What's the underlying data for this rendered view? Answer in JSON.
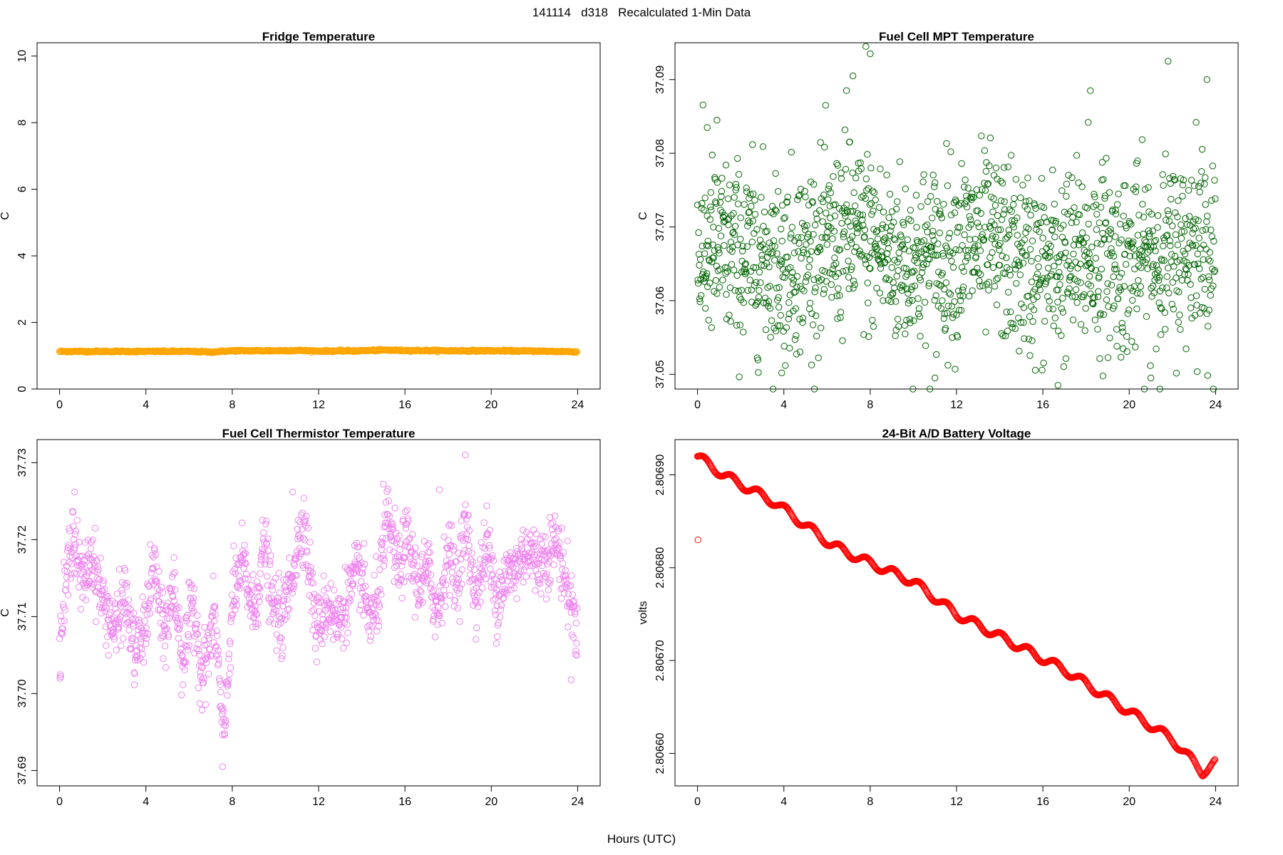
{
  "figure": {
    "title": "141114   d318   Recalculated 1-Min Data",
    "xlabel": "Hours (UTC)"
  },
  "chart_data": [
    {
      "type": "scatter",
      "title": "Fridge Temperature",
      "xlabel": "",
      "ylabel": "C",
      "color": "#FFA500",
      "xlim": [
        0,
        24
      ],
      "ylim": [
        0,
        10.4
      ],
      "x_ticks": [
        0,
        4,
        8,
        12,
        16,
        20,
        24
      ],
      "y_ticks": [
        0,
        2,
        4,
        6,
        8,
        10
      ],
      "y_tick_labels": [
        "0",
        "2",
        "4",
        "6",
        "8",
        "10"
      ],
      "points_per_hour": 60,
      "series": [
        {
          "x": [
            0,
            2,
            4,
            6,
            7,
            8,
            10,
            11,
            12,
            14,
            15,
            16,
            18,
            20,
            22,
            24
          ],
          "y": [
            1.13,
            1.13,
            1.13,
            1.13,
            1.11,
            1.15,
            1.15,
            1.16,
            1.14,
            1.15,
            1.17,
            1.16,
            1.15,
            1.15,
            1.14,
            1.12
          ]
        }
      ]
    },
    {
      "type": "scatter",
      "title": "Fuel Cell MPT Temperature",
      "xlabel": "",
      "ylabel": "C",
      "color": "#006400",
      "xlim": [
        0,
        24
      ],
      "ylim": [
        37.048,
        37.095
      ],
      "x_ticks": [
        0,
        4,
        8,
        12,
        16,
        20,
        24
      ],
      "y_ticks": [
        37.05,
        37.06,
        37.07,
        37.08,
        37.09
      ],
      "y_tick_labels": [
        "37.05",
        "37.06",
        "37.07",
        "37.08",
        "37.09"
      ],
      "points_per_hour": 60,
      "series": [
        {
          "x": [
            0,
            1,
            2,
            3,
            4,
            5,
            6,
            7,
            8,
            9,
            10,
            11,
            12,
            13,
            14,
            15,
            16,
            17,
            18,
            19,
            20,
            21,
            22,
            23,
            24
          ],
          "y": [
            37.066,
            37.067,
            37.066,
            37.066,
            37.065,
            37.066,
            37.067,
            37.069,
            37.068,
            37.066,
            37.065,
            37.066,
            37.067,
            37.068,
            37.067,
            37.065,
            37.064,
            37.065,
            37.066,
            37.066,
            37.065,
            37.066,
            37.066,
            37.068,
            37.067
          ],
          "spread": 0.0062,
          "outliers": [
            {
              "x": 0.45,
              "y": 37.0835
            },
            {
              "x": 0.9,
              "y": 37.0845
            },
            {
              "x": 6.9,
              "y": 37.0885
            },
            {
              "x": 7.2,
              "y": 37.0905
            },
            {
              "x": 7.8,
              "y": 37.0945
            },
            {
              "x": 8.0,
              "y": 37.0935
            },
            {
              "x": 11.0,
              "y": 37.0495
            },
            {
              "x": 16.7,
              "y": 37.0485
            },
            {
              "x": 18.2,
              "y": 37.0885
            },
            {
              "x": 18.1,
              "y": 37.0842
            },
            {
              "x": 21.8,
              "y": 37.0925
            },
            {
              "x": 23.6,
              "y": 37.09
            },
            {
              "x": 23.1,
              "y": 37.0842
            },
            {
              "x": 21.0,
              "y": 37.0495
            },
            {
              "x": 3.9,
              "y": 37.0502
            }
          ]
        }
      ]
    },
    {
      "type": "scatter",
      "title": "Fuel Cell Thermistor Temperature",
      "xlabel": "",
      "ylabel": "C",
      "color": "#EE82EE",
      "xlim": [
        0,
        24
      ],
      "ylim": [
        37.688,
        37.733
      ],
      "x_ticks": [
        0,
        4,
        8,
        12,
        16,
        20,
        24
      ],
      "y_ticks": [
        37.69,
        37.7,
        37.71,
        37.72,
        37.73
      ],
      "y_tick_labels": [
        "37.69",
        "37.70",
        "37.71",
        "37.72",
        "37.73"
      ],
      "points_per_hour": 60,
      "series": [
        {
          "x": [
            0,
            0.6,
            1.0,
            1.5,
            2.0,
            2.6,
            3.0,
            3.5,
            3.9,
            4.4,
            4.8,
            5.3,
            5.7,
            6.2,
            6.6,
            7.2,
            7.6,
            8.0,
            8.5,
            9.0,
            9.5,
            9.8,
            10.3,
            10.8,
            11.3,
            11.9,
            12.4,
            12.9,
            13.4,
            13.9,
            14.4,
            14.8,
            15.2,
            15.7,
            16.1,
            16.6,
            17.1,
            17.5,
            18.0,
            18.4,
            18.8,
            19.3,
            19.8,
            20.2,
            20.6,
            21.1,
            21.6,
            22.1,
            22.6,
            23.0,
            23.5,
            24.0
          ],
          "y": [
            37.706,
            37.722,
            37.714,
            37.718,
            37.712,
            37.708,
            37.713,
            37.705,
            37.708,
            37.717,
            37.707,
            37.714,
            37.704,
            37.712,
            37.702,
            37.71,
            37.693,
            37.712,
            37.717,
            37.71,
            37.72,
            37.712,
            37.709,
            37.716,
            37.723,
            37.708,
            37.712,
            37.709,
            37.713,
            37.716,
            37.709,
            37.713,
            37.723,
            37.716,
            37.72,
            37.714,
            37.716,
            37.71,
            37.719,
            37.714,
            37.722,
            37.712,
            37.72,
            37.712,
            37.715,
            37.716,
            37.719,
            37.717,
            37.718,
            37.72,
            37.714,
            37.708
          ],
          "spread": 0.0022,
          "outliers": [
            {
              "x": 18.8,
              "y": 37.731
            },
            {
              "x": 7.55,
              "y": 37.6905
            },
            {
              "x": 0.05,
              "y": 37.7022
            },
            {
              "x": 23.7,
              "y": 37.7018
            },
            {
              "x": 0.7,
              "y": 37.7262
            },
            {
              "x": 10.8,
              "y": 37.7262
            },
            {
              "x": 15.0,
              "y": 37.7272
            },
            {
              "x": 17.6,
              "y": 37.7265
            }
          ]
        }
      ]
    },
    {
      "type": "scatter",
      "title": "24-Bit A/D Battery Voltage",
      "xlabel": "",
      "ylabel": "volts",
      "color": "#FF0000",
      "xlim": [
        0,
        24
      ],
      "ylim": [
        2.806565,
        2.806938
      ],
      "x_ticks": [
        0,
        4,
        8,
        12,
        16,
        20,
        24
      ],
      "y_ticks": [
        2.8066,
        2.8067,
        2.8068,
        2.8069
      ],
      "y_tick_labels": [
        "2.80660",
        "2.80670",
        "2.80680",
        "2.80690"
      ],
      "points_per_hour": 60,
      "series": [
        {
          "x": [
            0,
            24
          ],
          "y": [
            2.80692,
            2.80658
          ],
          "trend_points": [
            [
              0,
              2.80692
            ],
            [
              1.2,
              2.8069
            ],
            [
              3.6,
              2.80687
            ],
            [
              6.2,
              2.806825
            ],
            [
              7.5,
              2.80681
            ],
            [
              10.0,
              2.806785
            ],
            [
              12.0,
              2.80675
            ],
            [
              14.5,
              2.80672
            ],
            [
              17.0,
              2.80669
            ],
            [
              20.0,
              2.806645
            ],
            [
              22.0,
              2.806615
            ],
            [
              23.4,
              2.80658
            ],
            [
              24.0,
              2.80659
            ]
          ],
          "oscillation_amplitude": 4.5e-06,
          "oscillation_period_hours": 1.25,
          "outliers": [
            {
              "x": 0.02,
              "y": 2.80683
            }
          ]
        }
      ]
    }
  ]
}
